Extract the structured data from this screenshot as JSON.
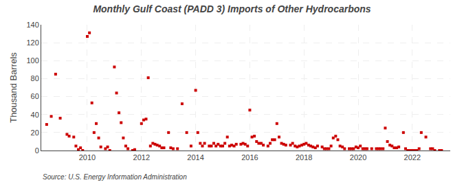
{
  "chart_data": {
    "type": "scatter",
    "title": "Monthly Gulf Coast (PADD 3) Imports of Other Hydrocarbons",
    "ylabel": "Thousand Barrels",
    "annotations": [
      "Source: U.S. Energy Information Administration"
    ],
    "color": "#cc0000",
    "marker": "square",
    "grid": true,
    "xlim": [
      2008.3,
      2023.4
    ],
    "xticks": [
      2010,
      2012,
      2014,
      2016,
      2018,
      2020,
      2022
    ],
    "ylim": [
      0,
      140
    ],
    "yticks": [
      0,
      20,
      40,
      60,
      80,
      100,
      120,
      140
    ],
    "x": [
      2008.5,
      2008.67,
      2008.83,
      2009.0,
      2009.25,
      2009.33,
      2009.5,
      2009.58,
      2009.67,
      2009.75,
      2009.83,
      2010.0,
      2010.08,
      2010.17,
      2010.25,
      2010.33,
      2010.42,
      2010.5,
      2010.67,
      2010.75,
      2010.83,
      2011.0,
      2011.08,
      2011.17,
      2011.25,
      2011.33,
      2011.42,
      2011.5,
      2011.67,
      2011.75,
      2012.0,
      2012.08,
      2012.17,
      2012.25,
      2012.33,
      2012.42,
      2012.5,
      2012.58,
      2012.67,
      2012.75,
      2012.83,
      2013.0,
      2013.08,
      2013.17,
      2013.33,
      2013.5,
      2013.67,
      2013.83,
      2014.0,
      2014.08,
      2014.17,
      2014.25,
      2014.33,
      2014.5,
      2014.58,
      2014.67,
      2014.75,
      2014.83,
      2014.92,
      2015.0,
      2015.08,
      2015.17,
      2015.25,
      2015.33,
      2015.42,
      2015.5,
      2015.67,
      2015.75,
      2015.83,
      2015.92,
      2016.0,
      2016.08,
      2016.17,
      2016.25,
      2016.33,
      2016.42,
      2016.5,
      2016.67,
      2016.75,
      2016.83,
      2016.92,
      2017.0,
      2017.08,
      2017.17,
      2017.25,
      2017.33,
      2017.5,
      2017.58,
      2017.67,
      2017.75,
      2017.83,
      2017.92,
      2018.0,
      2018.08,
      2018.17,
      2018.25,
      2018.33,
      2018.42,
      2018.5,
      2018.67,
      2018.75,
      2018.83,
      2018.92,
      2019.0,
      2019.08,
      2019.17,
      2019.25,
      2019.33,
      2019.42,
      2019.5,
      2019.67,
      2019.75,
      2019.83,
      2019.92,
      2020.0,
      2020.08,
      2020.17,
      2020.25,
      2020.33,
      2020.5,
      2020.67,
      2020.75,
      2020.83,
      2020.92,
      2021.0,
      2021.08,
      2021.17,
      2021.25,
      2021.33,
      2021.42,
      2021.5,
      2021.67,
      2021.75,
      2021.83,
      2021.92,
      2022.0,
      2022.08,
      2022.17,
      2022.25,
      2022.33,
      2022.5,
      2022.67,
      2022.75,
      2022.83,
      2023.0,
      2023.08
    ],
    "values": [
      29,
      38,
      85,
      36,
      18,
      16,
      15,
      5,
      1,
      3,
      0,
      127,
      131,
      53,
      20,
      30,
      14,
      4,
      2,
      4,
      0,
      93,
      64,
      42,
      31,
      14,
      5,
      2,
      0,
      1,
      30,
      34,
      35,
      81,
      5,
      8,
      7,
      6,
      5,
      3,
      3,
      20,
      3,
      2,
      2,
      52,
      20,
      5,
      67,
      20,
      8,
      5,
      8,
      5,
      5,
      8,
      5,
      7,
      5,
      5,
      8,
      15,
      5,
      6,
      5,
      7,
      7,
      8,
      7,
      5,
      45,
      15,
      16,
      10,
      8,
      8,
      6,
      5,
      8,
      12,
      12,
      30,
      15,
      8,
      7,
      6,
      6,
      8,
      5,
      4,
      5,
      6,
      7,
      8,
      6,
      5,
      4,
      3,
      5,
      4,
      2,
      2,
      2,
      5,
      14,
      16,
      12,
      5,
      4,
      2,
      2,
      2,
      2,
      4,
      3,
      5,
      2,
      2,
      2,
      2,
      2,
      2,
      2,
      2,
      25,
      10,
      6,
      5,
      3,
      3,
      4,
      20,
      2,
      0,
      0,
      0,
      0,
      0,
      2,
      20,
      15,
      2,
      2,
      0,
      0,
      0
    ]
  }
}
